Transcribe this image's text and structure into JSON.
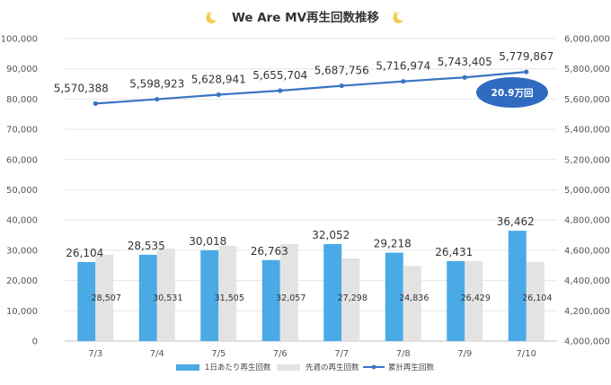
{
  "chart_data": {
    "type": "bar",
    "title": "We Are MV再生回数推移",
    "title_decoration_icon": "sparkle-moon-icon",
    "categories": [
      "7/3",
      "7/4",
      "7/5",
      "7/6",
      "7/7",
      "7/8",
      "7/9",
      "7/10"
    ],
    "series": [
      {
        "name": "1日あたり再生回数",
        "kind": "bar",
        "axis": "left",
        "color": "#4aaae6",
        "values": [
          26104,
          28535,
          30018,
          26763,
          32052,
          29218,
          26431,
          36462
        ],
        "labels": [
          "26,104",
          "28,535",
          "30,018",
          "26,763",
          "32,052",
          "29,218",
          "26,431",
          "36,462"
        ]
      },
      {
        "name": "先週の再生回数",
        "kind": "bar",
        "axis": "left",
        "color": "#e3e3e3",
        "values": [
          28507,
          30531,
          31505,
          32057,
          27298,
          24836,
          26429,
          26104
        ],
        "labels": [
          "28,507",
          "30,531",
          "31,505",
          "32,057",
          "27,298",
          "24,836",
          "26,429",
          "26,104"
        ]
      },
      {
        "name": "累計再生回数",
        "kind": "line",
        "axis": "right",
        "color": "#3a74c4",
        "values": [
          5570388,
          5598923,
          5628941,
          5655704,
          5687756,
          5716974,
          5743405,
          5779867
        ],
        "labels": [
          "5,570,388",
          "5,598,923",
          "5,628,941",
          "5,655,704",
          "5,687,756",
          "5,716,974",
          "5,743,405",
          "5,779,867"
        ]
      }
    ],
    "y_left": {
      "min": 0,
      "max": 100000,
      "step": 10000,
      "ticks": [
        "0",
        "10,000",
        "20,000",
        "30,000",
        "40,000",
        "50,000",
        "60,000",
        "70,000",
        "80,000",
        "90,000",
        "100,000"
      ]
    },
    "y_right": {
      "min": 4000000,
      "max": 6000000,
      "step": 200000,
      "ticks": [
        "4,000,000",
        "4,200,000",
        "4,400,000",
        "4,600,000",
        "4,800,000",
        "5,000,000",
        "5,200,000",
        "5,400,000",
        "5,600,000",
        "5,800,000",
        "6,000,000"
      ]
    },
    "callout": {
      "text": "20.9万回",
      "color": "#2f6cbf"
    },
    "grid": true,
    "legend_position": "bottom"
  }
}
